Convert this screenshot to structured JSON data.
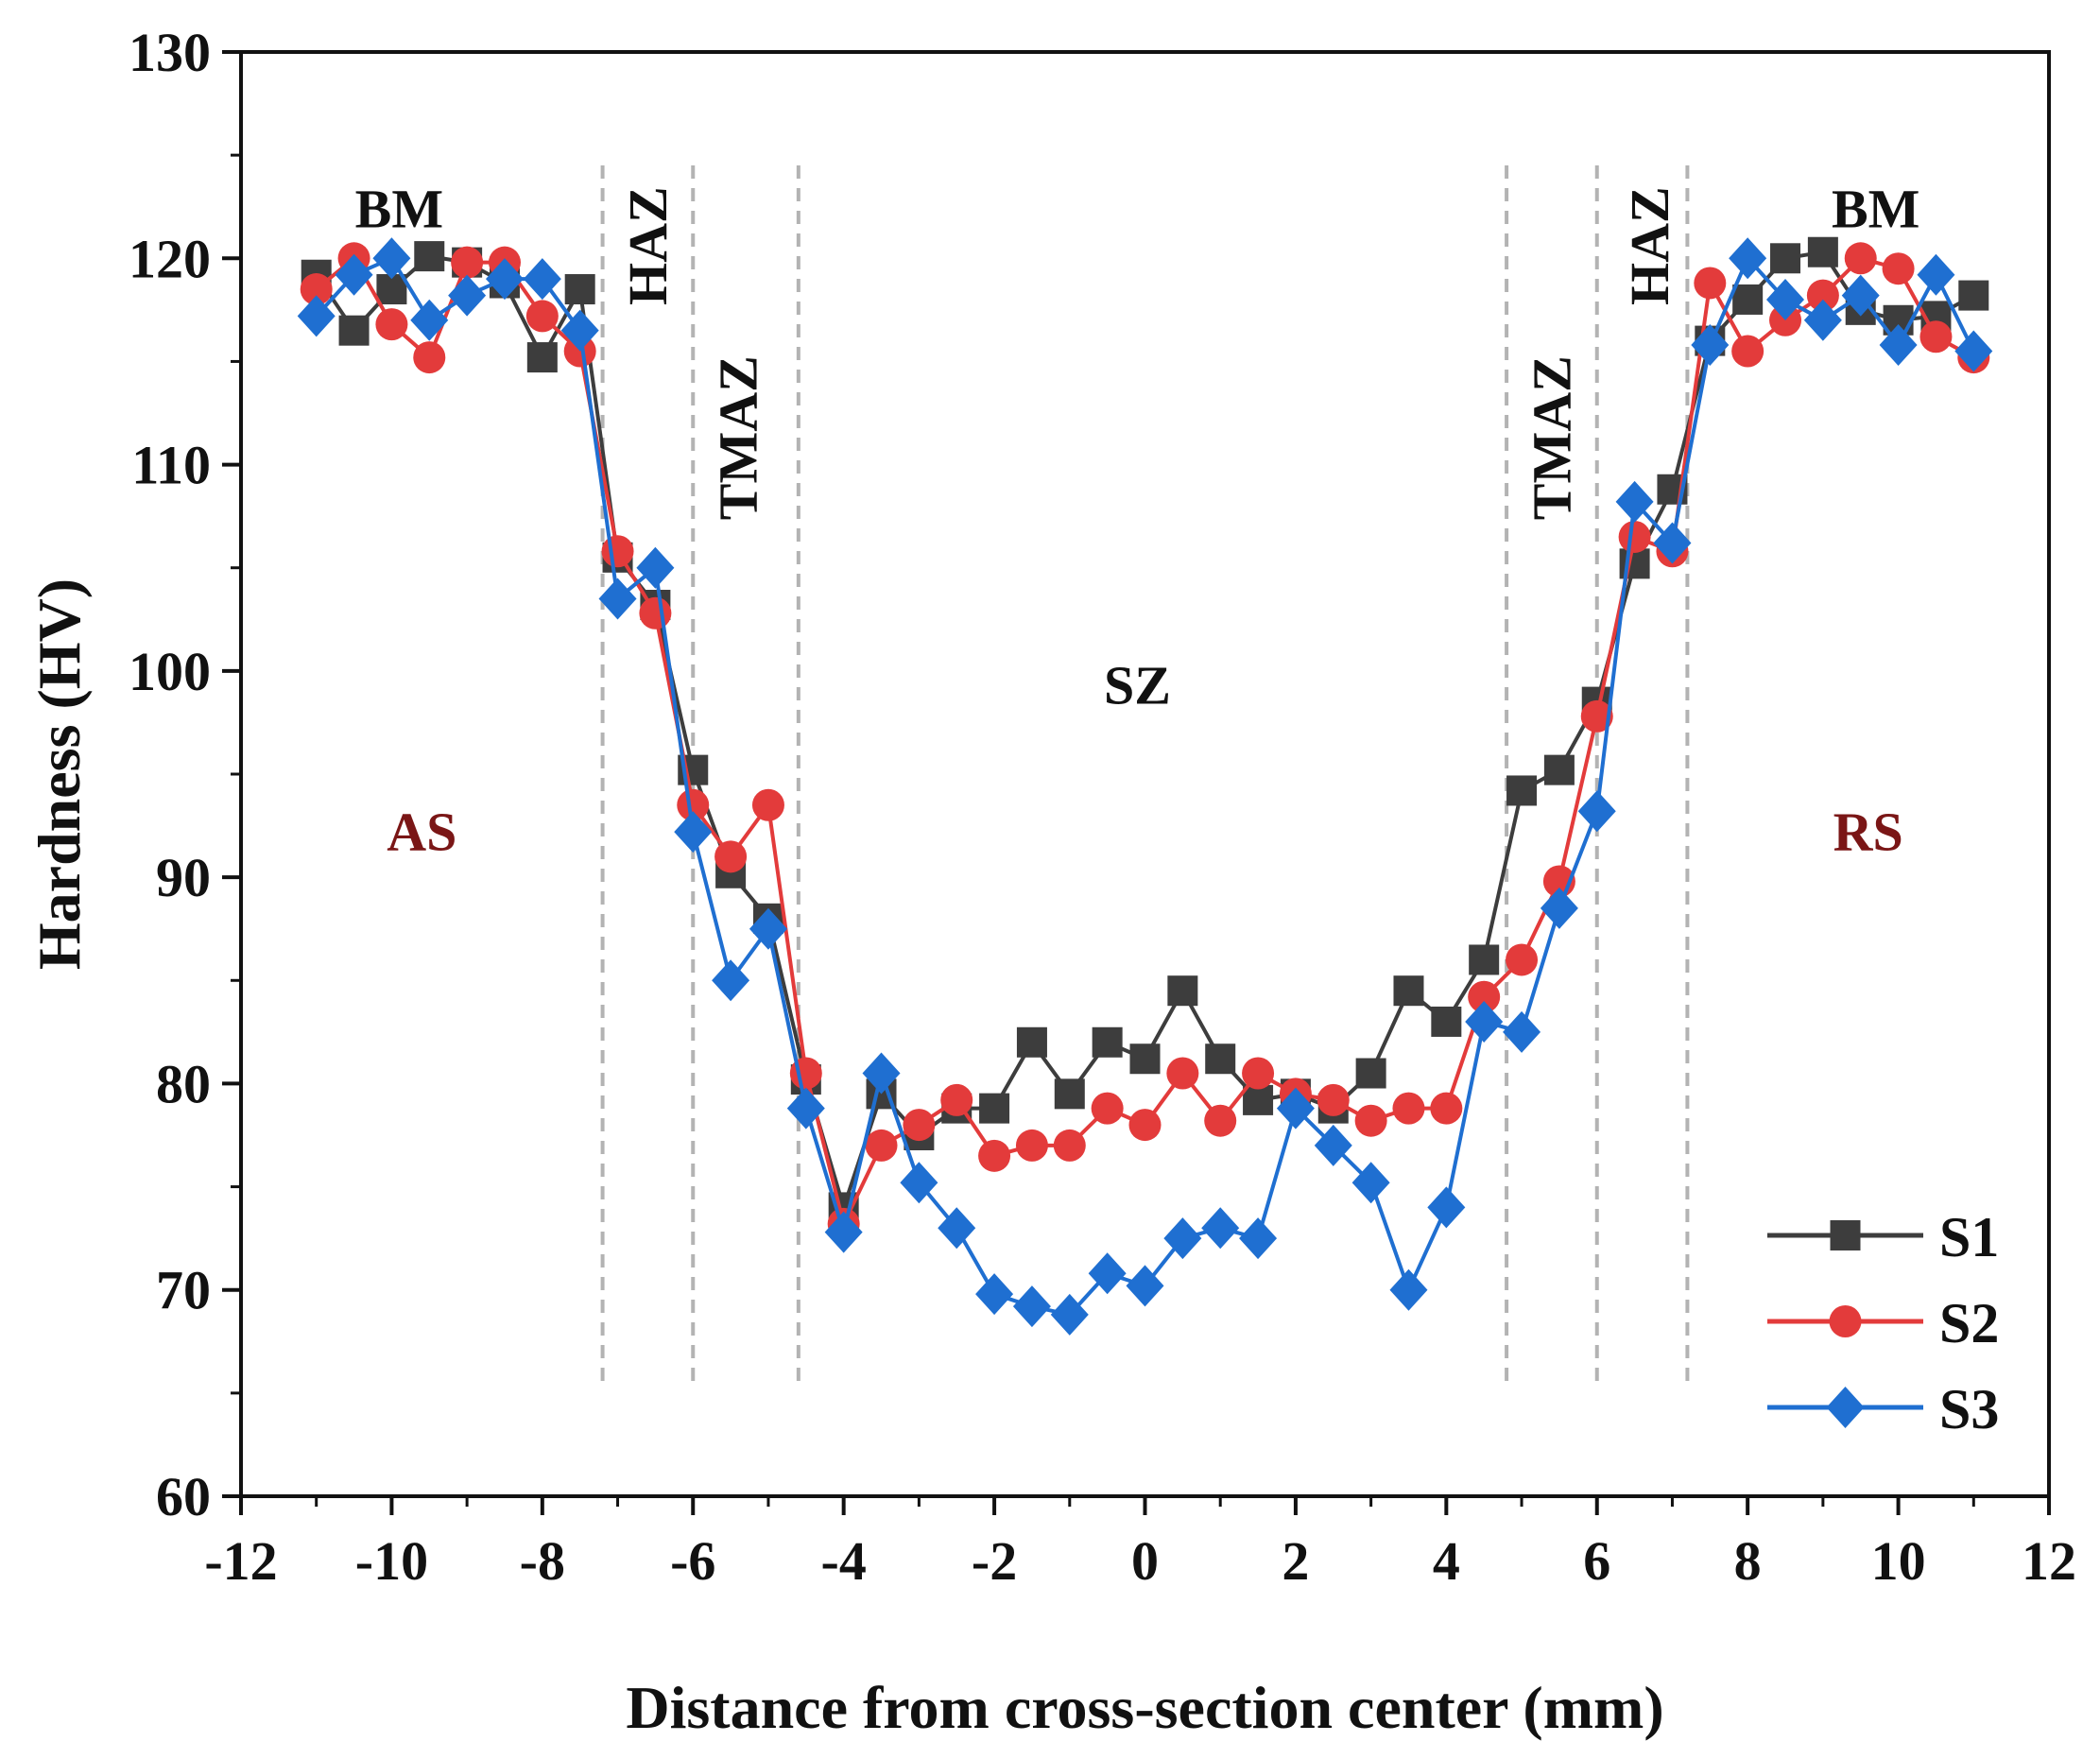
{
  "chart_data": {
    "type": "line",
    "title": "",
    "xlabel": "Distance from cross-section center (mm)",
    "ylabel": "Hardness (HV)",
    "xlim": [
      -12,
      12
    ],
    "ylim": [
      60,
      130
    ],
    "xticks": [
      -12,
      -10,
      -8,
      -6,
      -4,
      -2,
      0,
      2,
      4,
      6,
      8,
      10,
      12
    ],
    "yticks": [
      60,
      70,
      80,
      90,
      100,
      110,
      120,
      130
    ],
    "grid": false,
    "legend_position": "bottom-right",
    "x": [
      -11,
      -10.5,
      -10,
      -9.5,
      -9,
      -8.5,
      -8,
      -7.5,
      -7,
      -6.5,
      -6,
      -5.5,
      -5,
      -4.5,
      -4,
      -3.5,
      -3,
      -2.5,
      -2,
      -1.5,
      -1,
      -0.5,
      0,
      0.5,
      1,
      1.5,
      2,
      2.5,
      3,
      3.5,
      4,
      4.5,
      5,
      5.5,
      6,
      6.5,
      7,
      7.5,
      8,
      8.5,
      9,
      9.5,
      10,
      10.5,
      11
    ],
    "series": [
      {
        "name": "S1",
        "color": "#3d3d3d",
        "marker": "square",
        "values": [
          119.2,
          116.5,
          118.5,
          120.1,
          119.8,
          118.8,
          115.2,
          118.5,
          105.5,
          103.2,
          95.2,
          90.2,
          88,
          80.2,
          74,
          79.5,
          77.5,
          78.8,
          78.8,
          82,
          79.5,
          82,
          81.2,
          84.5,
          81.2,
          79.2,
          79.5,
          78.8,
          80.5,
          84.5,
          83,
          86,
          94.2,
          95.2,
          98.5,
          105.2,
          108.8,
          116,
          118,
          120,
          120.3,
          117.5,
          117,
          117.2,
          118.2
        ]
      },
      {
        "name": "S2",
        "color": "#e33b3b",
        "marker": "circle",
        "values": [
          118.5,
          120,
          116.8,
          115.2,
          119.8,
          119.8,
          117.2,
          115.5,
          105.8,
          102.8,
          93.5,
          91,
          93.5,
          80.5,
          73.2,
          77,
          78,
          79.2,
          76.5,
          77,
          77,
          78.8,
          78,
          80.5,
          78.2,
          80.5,
          79.5,
          79.2,
          78.2,
          78.8,
          78.8,
          84.2,
          86,
          89.8,
          97.8,
          106.5,
          105.8,
          118.8,
          115.5,
          117,
          118.2,
          120,
          119.5,
          116.2,
          115.2
        ]
      },
      {
        "name": "S3",
        "color": "#1f6fd1",
        "marker": "diamond",
        "values": [
          117.2,
          119.2,
          120,
          117,
          118.2,
          119,
          119,
          116.5,
          103.5,
          105,
          92.2,
          85,
          87.5,
          78.8,
          72.8,
          80.5,
          75.2,
          73,
          69.8,
          69.2,
          68.8,
          70.8,
          70.2,
          72.5,
          73,
          72.5,
          78.8,
          77,
          75.2,
          70,
          74,
          83,
          82.5,
          88.5,
          93.2,
          108.2,
          106.2,
          115.8,
          120,
          118,
          117,
          118.2,
          115.8,
          119.2,
          115.5
        ]
      }
    ],
    "zone_lines": [
      -7.2,
      -6.0,
      -4.6,
      4.8,
      6.0,
      7.2
    ],
    "annotations": [
      {
        "text": "BM",
        "x": -9.9,
        "y": 122.4,
        "color": "#111111",
        "rotate": false
      },
      {
        "text": "HAZ",
        "x": -6.6,
        "y": 120.6,
        "color": "#111111",
        "rotate": true
      },
      {
        "text": "TMAZ",
        "x": -5.4,
        "y": 111.3,
        "color": "#111111",
        "rotate": true
      },
      {
        "text": "SZ",
        "x": -0.1,
        "y": 99.3,
        "color": "#111111",
        "rotate": false
      },
      {
        "text": "AS",
        "x": -9.6,
        "y": 92.2,
        "color": "#7a1616",
        "rotate": false
      },
      {
        "text": "TMAZ",
        "x": 5.4,
        "y": 111.3,
        "color": "#111111",
        "rotate": true
      },
      {
        "text": "HAZ",
        "x": 6.7,
        "y": 120.6,
        "color": "#111111",
        "rotate": true
      },
      {
        "text": "BM",
        "x": 9.7,
        "y": 122.4,
        "color": "#111111",
        "rotate": false
      },
      {
        "text": "RS",
        "x": 9.6,
        "y": 92.2,
        "color": "#7a1616",
        "rotate": false
      }
    ]
  }
}
